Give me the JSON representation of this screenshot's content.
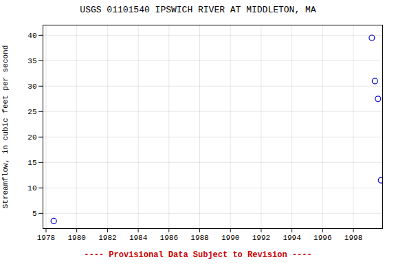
{
  "chart_data": {
    "type": "scatter",
    "title": "USGS 01101540 IPSWICH RIVER AT MIDDLETON, MA",
    "ylabel": "Streamflow, in cubic feet per second",
    "x": [
      1978.5,
      1999.2,
      1999.4,
      1999.6,
      1999.8
    ],
    "values": [
      3.5,
      39.5,
      31.0,
      27.5,
      11.5
    ],
    "color": "#0000cc",
    "marker": "circle",
    "xlim": [
      1977.8,
      1999.9
    ],
    "ylim": [
      2,
      42
    ],
    "xticks": [
      1978,
      1980,
      1982,
      1984,
      1986,
      1988,
      1990,
      1992,
      1994,
      1996,
      1998
    ],
    "yticks": [
      5,
      10,
      15,
      20,
      25,
      30,
      35,
      40
    ],
    "grid": true,
    "annotations": [
      "---- Provisional Data Subject to Revision ----"
    ]
  }
}
